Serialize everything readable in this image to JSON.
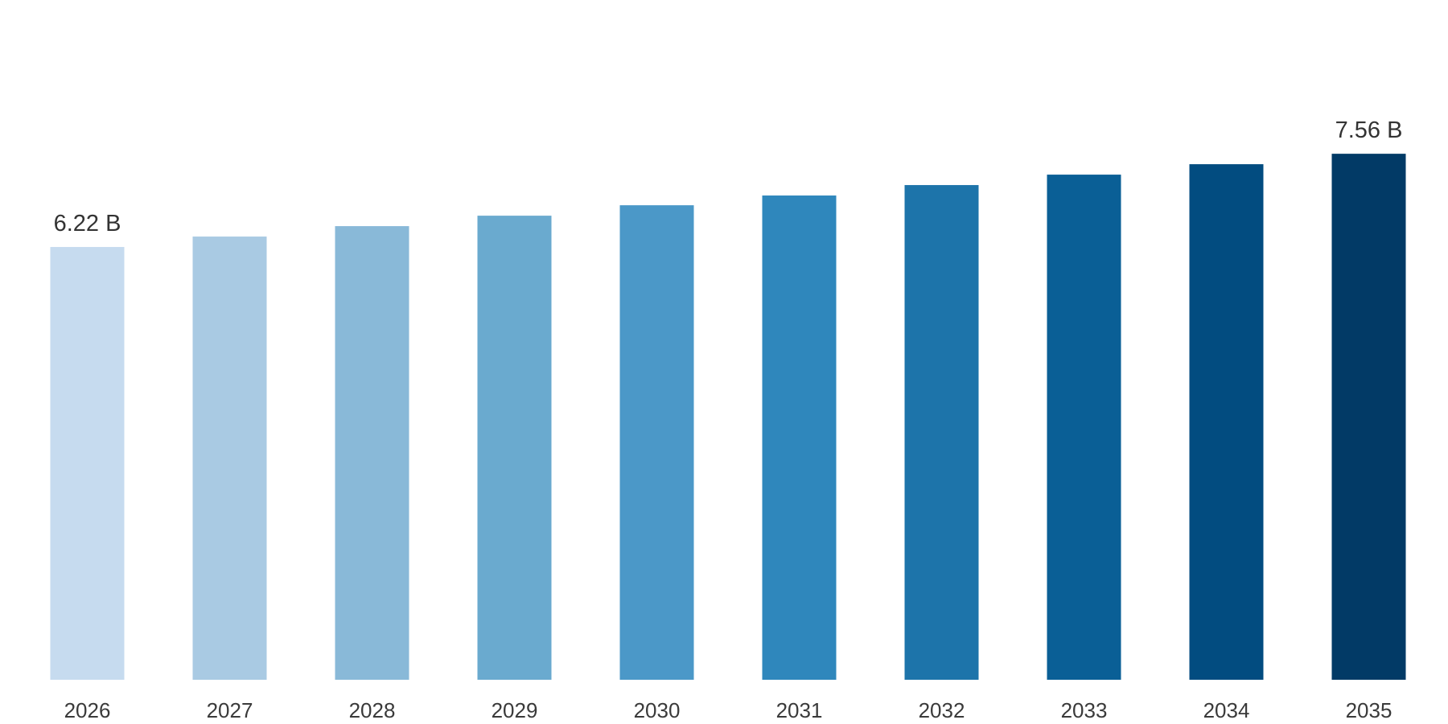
{
  "chart_data": {
    "type": "bar",
    "title": "",
    "xlabel": "",
    "ylabel": "",
    "categories": [
      "2026",
      "2027",
      "2028",
      "2029",
      "2030",
      "2031",
      "2032",
      "2033",
      "2034",
      "2035"
    ],
    "values": [
      6.22,
      6.37,
      6.52,
      6.67,
      6.82,
      6.96,
      7.11,
      7.26,
      7.41,
      7.56
    ],
    "data_labels": [
      "6.22 B",
      "",
      "",
      "",
      "",
      "",
      "",
      "",
      "",
      "7.56 B"
    ],
    "value_unit": "B",
    "ylim": [
      0,
      9.77
    ],
    "grid": false,
    "legend": "none",
    "colors": [
      "#c6dbef",
      "#a9cae3",
      "#89b9d8",
      "#6aaacf",
      "#4b98c8",
      "#2f87bc",
      "#1d74aa",
      "#0a5f96",
      "#024c80",
      "#023a66"
    ]
  }
}
